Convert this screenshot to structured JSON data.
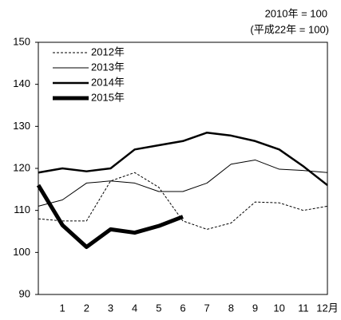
{
  "chart_data": {
    "type": "line",
    "note_lines": [
      "2010年 = 100",
      "(平成22年 = 100)"
    ],
    "categories": [
      null,
      "1",
      "2",
      "3",
      "4",
      "5",
      "6",
      "7",
      "8",
      "9",
      "10",
      "11",
      "12月"
    ],
    "series": [
      {
        "name": "2012年",
        "color": "#000000",
        "width": 1,
        "dash": true,
        "values": [
          108,
          107.5,
          107.5,
          117,
          119,
          115.5,
          107.5,
          105.5,
          107,
          112,
          111.8,
          110,
          111
        ]
      },
      {
        "name": "2013年",
        "color": "#000000",
        "width": 1,
        "dash": false,
        "values": [
          111,
          112.5,
          116.5,
          117,
          116.5,
          114.5,
          114.5,
          116.5,
          121,
          122,
          119.8,
          119.5,
          119
        ]
      },
      {
        "name": "2014年",
        "color": "#000000",
        "width": 2.5,
        "dash": false,
        "values": [
          119,
          120,
          119.3,
          120,
          124.5,
          125.5,
          126.5,
          128.5,
          127.8,
          126.5,
          124.5,
          120.5,
          116
        ]
      },
      {
        "name": "2015年",
        "color": "#000000",
        "width": 5,
        "dash": false,
        "values": [
          116,
          106.5,
          101.3,
          105.5,
          104.7,
          106.3,
          108.5,
          null,
          null,
          null,
          null,
          null,
          null
        ]
      }
    ],
    "ylim": [
      90,
      150
    ],
    "yticks": [
      90,
      100,
      110,
      120,
      130,
      140,
      150
    ],
    "legend": "upper left"
  }
}
